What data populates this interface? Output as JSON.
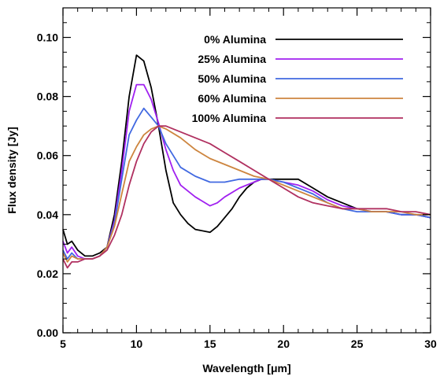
{
  "chart_data": {
    "type": "line",
    "xlabel": "Wavelength [μm]",
    "ylabel": "Flux density [Jy]",
    "xlim": [
      5,
      30
    ],
    "ylim": [
      0.0,
      0.11
    ],
    "xticks": [
      5,
      10,
      15,
      20,
      25,
      30
    ],
    "xtick_labels": [
      "5",
      "10",
      "15",
      "20",
      "25",
      "30"
    ],
    "yticks": [
      0.0,
      0.02,
      0.04,
      0.06,
      0.08,
      0.1
    ],
    "ytick_labels": [
      "0.00",
      "0.02",
      "0.04",
      "0.06",
      "0.08",
      "0.10"
    ],
    "grid": false,
    "legend_position": "top-right",
    "series": [
      {
        "name": "0% Alumina",
        "color": "#000000",
        "points": [
          [
            5,
            0.035
          ],
          [
            5.3,
            0.03
          ],
          [
            5.6,
            0.031
          ],
          [
            6,
            0.028
          ],
          [
            6.5,
            0.026
          ],
          [
            7,
            0.026
          ],
          [
            7.5,
            0.027
          ],
          [
            8,
            0.029
          ],
          [
            8.5,
            0.04
          ],
          [
            9,
            0.058
          ],
          [
            9.5,
            0.08
          ],
          [
            10,
            0.094
          ],
          [
            10.5,
            0.092
          ],
          [
            11,
            0.083
          ],
          [
            11.5,
            0.07
          ],
          [
            12,
            0.055
          ],
          [
            12.5,
            0.044
          ],
          [
            13,
            0.04
          ],
          [
            13.5,
            0.037
          ],
          [
            14,
            0.035
          ],
          [
            15,
            0.034
          ],
          [
            15.5,
            0.036
          ],
          [
            16,
            0.039
          ],
          [
            16.5,
            0.042
          ],
          [
            17,
            0.046
          ],
          [
            17.5,
            0.049
          ],
          [
            18,
            0.051
          ],
          [
            18.5,
            0.052
          ],
          [
            19,
            0.052
          ],
          [
            20,
            0.052
          ],
          [
            21,
            0.052
          ],
          [
            22,
            0.049
          ],
          [
            23,
            0.046
          ],
          [
            24,
            0.044
          ],
          [
            25,
            0.042
          ],
          [
            26,
            0.041
          ],
          [
            27,
            0.041
          ],
          [
            28,
            0.04
          ],
          [
            29,
            0.04
          ],
          [
            30,
            0.039
          ]
        ]
      },
      {
        "name": "25% Alumina",
        "color": "#a020f0",
        "points": [
          [
            5,
            0.031
          ],
          [
            5.3,
            0.027
          ],
          [
            5.6,
            0.029
          ],
          [
            6,
            0.026
          ],
          [
            6.5,
            0.025
          ],
          [
            7,
            0.025
          ],
          [
            7.5,
            0.026
          ],
          [
            8,
            0.029
          ],
          [
            8.5,
            0.038
          ],
          [
            9,
            0.055
          ],
          [
            9.5,
            0.075
          ],
          [
            10,
            0.084
          ],
          [
            10.5,
            0.084
          ],
          [
            11,
            0.079
          ],
          [
            11.5,
            0.071
          ],
          [
            12,
            0.062
          ],
          [
            12.5,
            0.055
          ],
          [
            13,
            0.05
          ],
          [
            14,
            0.046
          ],
          [
            15,
            0.043
          ],
          [
            15.5,
            0.044
          ],
          [
            16,
            0.046
          ],
          [
            17,
            0.049
          ],
          [
            18,
            0.051
          ],
          [
            18.5,
            0.052
          ],
          [
            19,
            0.052
          ],
          [
            20,
            0.051
          ],
          [
            21,
            0.05
          ],
          [
            22,
            0.048
          ],
          [
            23,
            0.045
          ],
          [
            24,
            0.043
          ],
          [
            25,
            0.042
          ],
          [
            26,
            0.041
          ],
          [
            27,
            0.041
          ],
          [
            28,
            0.04
          ],
          [
            29,
            0.04
          ],
          [
            30,
            0.039
          ]
        ]
      },
      {
        "name": "50% Alumina",
        "color": "#4169e1",
        "points": [
          [
            5,
            0.028
          ],
          [
            5.3,
            0.025
          ],
          [
            5.6,
            0.027
          ],
          [
            6,
            0.025
          ],
          [
            6.5,
            0.025
          ],
          [
            7,
            0.025
          ],
          [
            7.5,
            0.026
          ],
          [
            8,
            0.029
          ],
          [
            8.5,
            0.037
          ],
          [
            9,
            0.052
          ],
          [
            9.5,
            0.067
          ],
          [
            10,
            0.072
          ],
          [
            10.5,
            0.076
          ],
          [
            11,
            0.073
          ],
          [
            11.5,
            0.07
          ],
          [
            12,
            0.064
          ],
          [
            12.5,
            0.06
          ],
          [
            13,
            0.056
          ],
          [
            14,
            0.053
          ],
          [
            15,
            0.051
          ],
          [
            16,
            0.051
          ],
          [
            17,
            0.052
          ],
          [
            18,
            0.052
          ],
          [
            19,
            0.052
          ],
          [
            20,
            0.051
          ],
          [
            21,
            0.049
          ],
          [
            22,
            0.047
          ],
          [
            23,
            0.044
          ],
          [
            24,
            0.042
          ],
          [
            25,
            0.041
          ],
          [
            26,
            0.041
          ],
          [
            27,
            0.041
          ],
          [
            28,
            0.04
          ],
          [
            29,
            0.04
          ],
          [
            30,
            0.039
          ]
        ]
      },
      {
        "name": "60% Alumina",
        "color": "#cd853f",
        "points": [
          [
            5,
            0.027
          ],
          [
            5.3,
            0.024
          ],
          [
            5.6,
            0.026
          ],
          [
            6,
            0.025
          ],
          [
            6.5,
            0.025
          ],
          [
            7,
            0.025
          ],
          [
            7.5,
            0.026
          ],
          [
            8,
            0.029
          ],
          [
            8.5,
            0.036
          ],
          [
            9,
            0.047
          ],
          [
            9.5,
            0.058
          ],
          [
            10,
            0.063
          ],
          [
            10.5,
            0.067
          ],
          [
            11,
            0.069
          ],
          [
            11.5,
            0.07
          ],
          [
            12,
            0.069
          ],
          [
            13,
            0.066
          ],
          [
            14,
            0.062
          ],
          [
            15,
            0.059
          ],
          [
            16,
            0.057
          ],
          [
            17,
            0.055
          ],
          [
            18,
            0.053
          ],
          [
            19,
            0.052
          ],
          [
            20,
            0.05
          ],
          [
            21,
            0.048
          ],
          [
            22,
            0.046
          ],
          [
            23,
            0.044
          ],
          [
            24,
            0.042
          ],
          [
            25,
            0.042
          ],
          [
            26,
            0.041
          ],
          [
            27,
            0.041
          ],
          [
            28,
            0.041
          ],
          [
            29,
            0.04
          ],
          [
            30,
            0.04
          ]
        ]
      },
      {
        "name": "100% Alumina",
        "color": "#b03060",
        "points": [
          [
            5,
            0.025
          ],
          [
            5.3,
            0.022
          ],
          [
            5.6,
            0.024
          ],
          [
            6,
            0.024
          ],
          [
            6.5,
            0.025
          ],
          [
            7,
            0.025
          ],
          [
            7.5,
            0.026
          ],
          [
            8,
            0.028
          ],
          [
            8.5,
            0.033
          ],
          [
            9,
            0.04
          ],
          [
            9.5,
            0.05
          ],
          [
            10,
            0.058
          ],
          [
            10.5,
            0.064
          ],
          [
            11,
            0.068
          ],
          [
            11.5,
            0.07
          ],
          [
            12,
            0.07
          ],
          [
            13,
            0.068
          ],
          [
            14,
            0.066
          ],
          [
            15,
            0.064
          ],
          [
            16,
            0.061
          ],
          [
            17,
            0.058
          ],
          [
            18,
            0.055
          ],
          [
            19,
            0.052
          ],
          [
            20,
            0.049
          ],
          [
            21,
            0.046
          ],
          [
            22,
            0.044
          ],
          [
            23,
            0.043
          ],
          [
            24,
            0.042
          ],
          [
            25,
            0.042
          ],
          [
            26,
            0.042
          ],
          [
            27,
            0.042
          ],
          [
            28,
            0.041
          ],
          [
            29,
            0.041
          ],
          [
            30,
            0.04
          ]
        ]
      }
    ]
  }
}
